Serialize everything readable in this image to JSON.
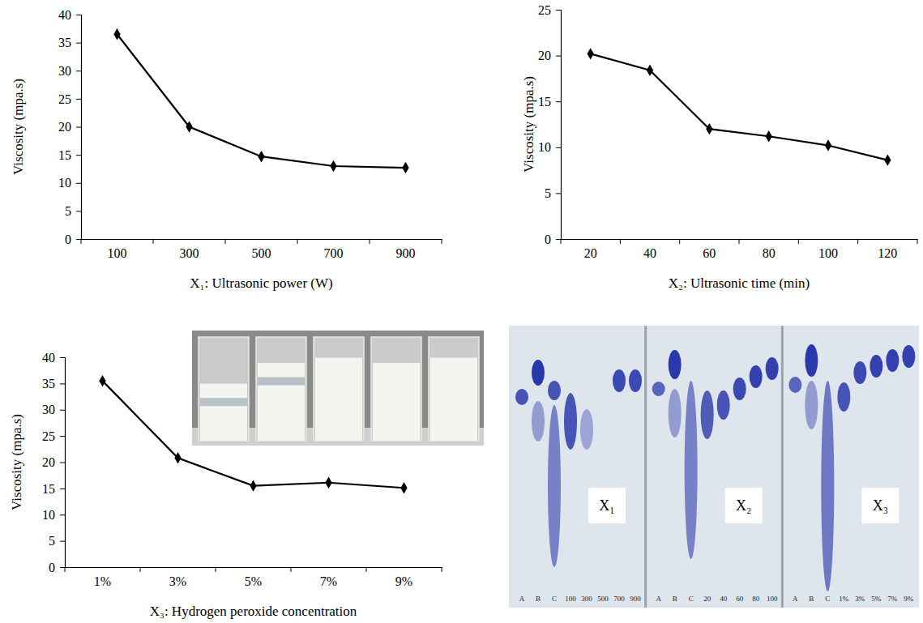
{
  "chart_data": [
    {
      "type": "line",
      "categories": [
        "100",
        "300",
        "500",
        "700",
        "900"
      ],
      "values": [
        36.5,
        20.0,
        14.7,
        13.0,
        12.7
      ],
      "color": "#000000",
      "marker": "diamond",
      "x_label": "X₁: Ultrasonic power (W)",
      "y_label": "Viscosity (mpa.s)",
      "ylim": [
        0,
        40
      ],
      "yticks": [
        0,
        5,
        10,
        15,
        20,
        25,
        30,
        35,
        40
      ],
      "grid": false
    },
    {
      "type": "line",
      "categories": [
        "20",
        "40",
        "60",
        "80",
        "100",
        "120"
      ],
      "values": [
        20.2,
        18.4,
        12.0,
        11.2,
        10.2,
        8.6
      ],
      "color": "#000000",
      "marker": "diamond",
      "x_label": "X₂: Ultrasonic time (min)",
      "y_label": "Viscosity (mpa.s)",
      "ylim": [
        0,
        25
      ],
      "yticks": [
        0,
        5,
        10,
        15,
        20,
        25
      ],
      "grid": false
    },
    {
      "type": "line",
      "categories": [
        "1%",
        "3%",
        "5%",
        "7%",
        "9%"
      ],
      "values": [
        35.5,
        20.8,
        15.5,
        16.1,
        15.1
      ],
      "color": "#000000",
      "marker": "diamond",
      "x_label": "X₃: Hydrogen peroxide concentration",
      "y_label": "Viscosity (mpa.s)",
      "ylim": [
        0,
        40
      ],
      "yticks": [
        0,
        5,
        10,
        15,
        20,
        25,
        30,
        35,
        40
      ],
      "grid": false
    }
  ],
  "gel_image": {
    "panels": [
      {
        "label": "X₁",
        "lanes": [
          "A",
          "B",
          "C",
          "100",
          "300",
          "500",
          "700",
          "900"
        ]
      },
      {
        "label": "X₂",
        "lanes": [
          "A",
          "B",
          "C",
          "20",
          "40",
          "60",
          "80",
          "100"
        ]
      },
      {
        "label": "X₃",
        "lanes": [
          "A",
          "B",
          "C",
          "1%",
          "3%",
          "5%",
          "7%",
          "9%"
        ]
      }
    ]
  }
}
